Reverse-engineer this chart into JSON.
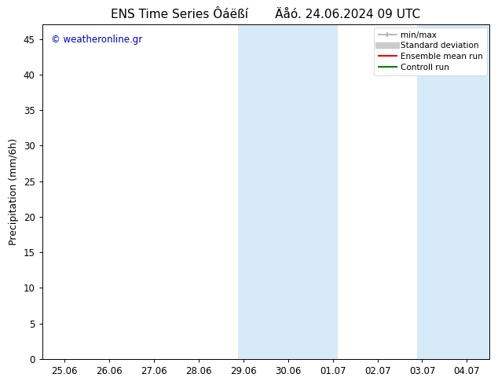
{
  "title": "ENS Time Series Ôáëßí       Äåó. 24.06.2024 09 UTC",
  "ylabel": "Precipitation (mm/6h)",
  "watermark": "© weatheronline.gr",
  "watermark_color": "#0000cc",
  "x_tick_labels": [
    "25.06",
    "26.06",
    "27.06",
    "28.06",
    "29.06",
    "30.06",
    "01.07",
    "02.07",
    "03.07",
    "04.07"
  ],
  "x_tick_positions": [
    0,
    1,
    2,
    3,
    4,
    5,
    6,
    7,
    8,
    9
  ],
  "ylim": [
    0,
    47
  ],
  "yticks": [
    0,
    5,
    10,
    15,
    20,
    25,
    30,
    35,
    40,
    45
  ],
  "xlim": [
    -0.5,
    9.5
  ],
  "shaded_regions": [
    {
      "xmin": 3.88,
      "xmax": 6.12,
      "color": "#d6eaf8"
    },
    {
      "xmin": 7.88,
      "xmax": 9.5,
      "color": "#d6eaf8"
    }
  ],
  "background_color": "#ffffff",
  "plot_bg_color": "#ffffff",
  "legend_items": [
    {
      "label": "min/max",
      "color": "#aaaaaa",
      "lw": 1.2,
      "style": "solid"
    },
    {
      "label": "Standard deviation",
      "color": "#cccccc",
      "lw": 6,
      "style": "solid"
    },
    {
      "label": "Ensemble mean run",
      "color": "#ff0000",
      "lw": 1.5,
      "style": "solid"
    },
    {
      "label": "Controll run",
      "color": "#008000",
      "lw": 1.5,
      "style": "solid"
    }
  ],
  "title_fontsize": 11,
  "tick_label_fontsize": 8.5,
  "axis_label_fontsize": 9,
  "watermark_fontsize": 8.5,
  "legend_fontsize": 7.5,
  "font_family": "DejaVu Sans"
}
